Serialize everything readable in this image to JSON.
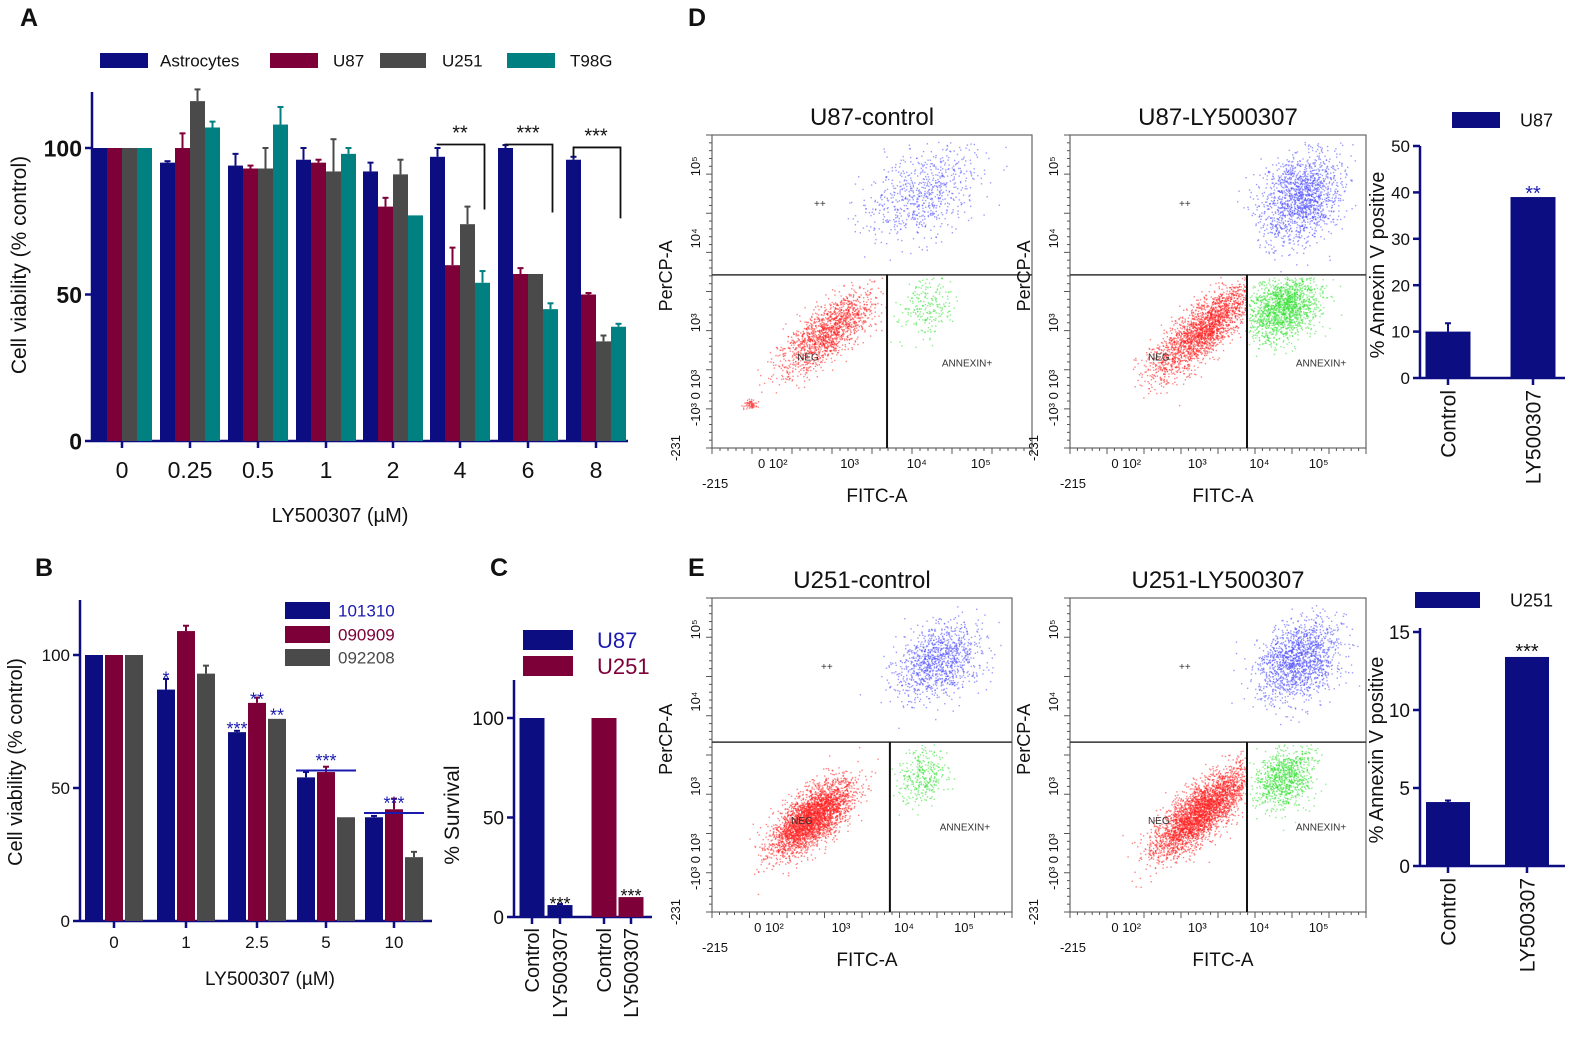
{
  "panels": {
    "a": "A",
    "b": "B",
    "c": "C",
    "d": "D",
    "e": "E"
  },
  "colors": {
    "navy": "#0d0d82",
    "maroon": "#7d0038",
    "grey": "#4a4a4a",
    "teal": "#008080",
    "blue_text": "#1a1ab0",
    "neg": "#ff2020",
    "annexin": "#30e030",
    "pp": "#4a4aff"
  },
  "chart_data": [
    {
      "type": "bar",
      "panel": "A",
      "title": "",
      "xlabel": "LY500307 (µM)",
      "ylabel": "Cell viability  (% control)",
      "ylim": [
        0,
        120
      ],
      "yticks": [
        0,
        50,
        100
      ],
      "categories": [
        "0",
        "0.25",
        "0.5",
        "1",
        "2",
        "4",
        "6",
        "8"
      ],
      "series": [
        {
          "name": "Astrocytes",
          "color": "#0d0d82",
          "values": [
            100,
            95,
            94,
            96,
            92,
            97,
            100,
            96
          ],
          "errors": [
            0,
            0.5,
            4,
            4,
            3,
            3,
            1,
            1
          ]
        },
        {
          "name": "U87",
          "color": "#7d0038",
          "values": [
            100,
            100,
            93,
            95,
            80,
            60,
            57,
            50
          ],
          "errors": [
            0,
            5,
            1,
            1,
            3,
            6,
            2,
            0.5
          ]
        },
        {
          "name": "U251",
          "color": "#4a4a4a",
          "values": [
            100,
            116,
            93,
            92,
            91,
            74,
            57,
            34
          ],
          "errors": [
            0,
            4,
            7,
            11,
            5,
            6,
            0,
            2
          ]
        },
        {
          "name": "T98G",
          "color": "#008080",
          "values": [
            100,
            107,
            108,
            98,
            77,
            54,
            45,
            39
          ],
          "errors": [
            0,
            2,
            6,
            2,
            0,
            4,
            2,
            1
          ]
        }
      ],
      "annotations": [
        {
          "text": "**",
          "category": 5,
          "y": 107,
          "bracket": [
            101,
            79
          ]
        },
        {
          "text": "***",
          "category": 6,
          "y": 107,
          "bracket": [
            101,
            78
          ]
        },
        {
          "text": "***",
          "category": 7,
          "y": 106,
          "bracket": [
            97,
            76
          ]
        }
      ],
      "legend": "top"
    },
    {
      "type": "bar",
      "panel": "B",
      "xlabel": "LY500307  (µM)",
      "ylabel": "Cell viability  (% control)",
      "ylim": [
        0,
        120
      ],
      "yticks": [
        0,
        50,
        100
      ],
      "categories": [
        "0",
        "1",
        "2.5",
        "5",
        "10"
      ],
      "series": [
        {
          "name": "101310",
          "color": "#0d0d82",
          "text_color": "#1a1ab0",
          "values": [
            100,
            87,
            71,
            54,
            39
          ],
          "errors": [
            0,
            4,
            0.5,
            2,
            0.5
          ]
        },
        {
          "name": "090909",
          "color": "#7d0038",
          "text_color": "#7d0038",
          "values": [
            100,
            109,
            82,
            56,
            42
          ],
          "errors": [
            0,
            2,
            2,
            2,
            4
          ]
        },
        {
          "name": "092208",
          "color": "#4a4a4a",
          "text_color": "#4a4a4a",
          "values": [
            100,
            93,
            76,
            39,
            24
          ],
          "errors": [
            0,
            3,
            0,
            0,
            2
          ]
        }
      ],
      "annotations": [
        {
          "text": "*",
          "category": 1,
          "series": 0,
          "y": 93
        },
        {
          "text": "***",
          "category": 2,
          "series": 0,
          "y": 74
        },
        {
          "text": "**",
          "category": 2,
          "series": 1,
          "y": 85
        },
        {
          "text": "**",
          "category": 2,
          "series": 2,
          "y": 79
        },
        {
          "text": "***",
          "category": 3,
          "y": 62,
          "line": true
        },
        {
          "text": "***",
          "category": 4,
          "y": 46,
          "line": true
        }
      ],
      "legend": "top-right"
    },
    {
      "type": "bar",
      "panel": "C",
      "xlabel": "",
      "ylabel": "% Survival",
      "ylim": [
        0,
        120
      ],
      "yticks": [
        0,
        50,
        100
      ],
      "categories": [
        "Control",
        "LY500307",
        "Control",
        "LY500307"
      ],
      "series": [
        {
          "name": "U87",
          "color": "#0d0d82",
          "text_color": "#1a1ab0",
          "values": [
            100,
            6,
            null,
            null
          ],
          "errors": [
            0,
            0.5,
            0,
            0
          ]
        },
        {
          "name": "U251",
          "color": "#7d0038",
          "text_color": "#7d0038",
          "values": [
            null,
            null,
            100,
            10
          ],
          "errors": [
            0,
            0,
            0,
            0
          ]
        }
      ],
      "annotations": [
        {
          "text": "***",
          "category": 1,
          "y": 9
        },
        {
          "text": "***",
          "category": 3,
          "y": 13
        }
      ],
      "legend": "top"
    },
    {
      "type": "bar",
      "panel": "D",
      "xlabel": "",
      "ylabel": "% Annexin V positive",
      "ylim": [
        0,
        50
      ],
      "yticks": [
        0,
        10,
        20,
        30,
        40,
        50
      ],
      "categories": [
        "Control",
        "LY500307"
      ],
      "series": [
        {
          "name": "U87",
          "color": "#0d0d82",
          "values": [
            10,
            39
          ],
          "errors": [
            1.8,
            0
          ]
        }
      ],
      "annotations": [
        {
          "text": "**",
          "category": 1,
          "y": 41,
          "color": "#1a1ab0"
        }
      ],
      "legend": "top"
    },
    {
      "type": "bar",
      "panel": "E",
      "xlabel": "",
      "ylabel": "% Annexin V positive",
      "ylim": [
        0,
        15
      ],
      "yticks": [
        0,
        5,
        10,
        15
      ],
      "categories": [
        "Control",
        "LY500307"
      ],
      "series": [
        {
          "name": "U251",
          "color": "#0d0d82",
          "values": [
            4.1,
            13.4
          ],
          "errors": [
            0.1,
            0
          ]
        }
      ],
      "annotations": [
        {
          "text": "***",
          "category": 1,
          "y": 14.1
        }
      ],
      "legend": "top"
    },
    {
      "type": "scatter",
      "panel": "D",
      "title": "U87-control",
      "xlabel": "FITC-A",
      "ylabel": "PerCP-A",
      "xticks": [
        "-215",
        "0 10²",
        "10³",
        "10⁴",
        "10⁵"
      ],
      "yticks": [
        "10⁵",
        "10⁴",
        "10³",
        "-10³ 0 10³",
        "-231"
      ],
      "gates": [
        "++",
        "NEG",
        "ANNEXIN+"
      ]
    },
    {
      "type": "scatter",
      "panel": "D",
      "title": "U87-LY500307",
      "xlabel": "FITC-A",
      "ylabel": "PerCP-A",
      "xticks": [
        "-215",
        "0 10²",
        "10³",
        "10⁴",
        "10⁵"
      ],
      "yticks": [
        "10⁵",
        "10⁴",
        "10³",
        "-10³ 0 10³",
        "-231"
      ],
      "gates": [
        "++",
        "NEG",
        "ANNEXIN+"
      ]
    },
    {
      "type": "scatter",
      "panel": "E",
      "title": "U251-control",
      "xlabel": "FITC-A",
      "ylabel": "PerCP-A",
      "xticks": [
        "-215",
        "0 10²",
        "10³",
        "10⁴",
        "10⁵"
      ],
      "yticks": [
        "10⁵",
        "10⁴",
        "10³",
        "-10³ 0 10³",
        "-231"
      ],
      "gates": [
        "++",
        "NEG",
        "ANNEXIN+"
      ]
    },
    {
      "type": "scatter",
      "panel": "E",
      "title": "U251-LY500307",
      "xlabel": "FITC-A",
      "ylabel": "PerCP-A",
      "xticks": [
        "-215",
        "0 10²",
        "10³",
        "10⁴",
        "10⁵"
      ],
      "yticks": [
        "10⁵",
        "10⁴",
        "10³",
        "-10³ 0 10³",
        "-231"
      ],
      "gates": [
        "++",
        "NEG",
        "ANNEXIN+"
      ]
    }
  ]
}
